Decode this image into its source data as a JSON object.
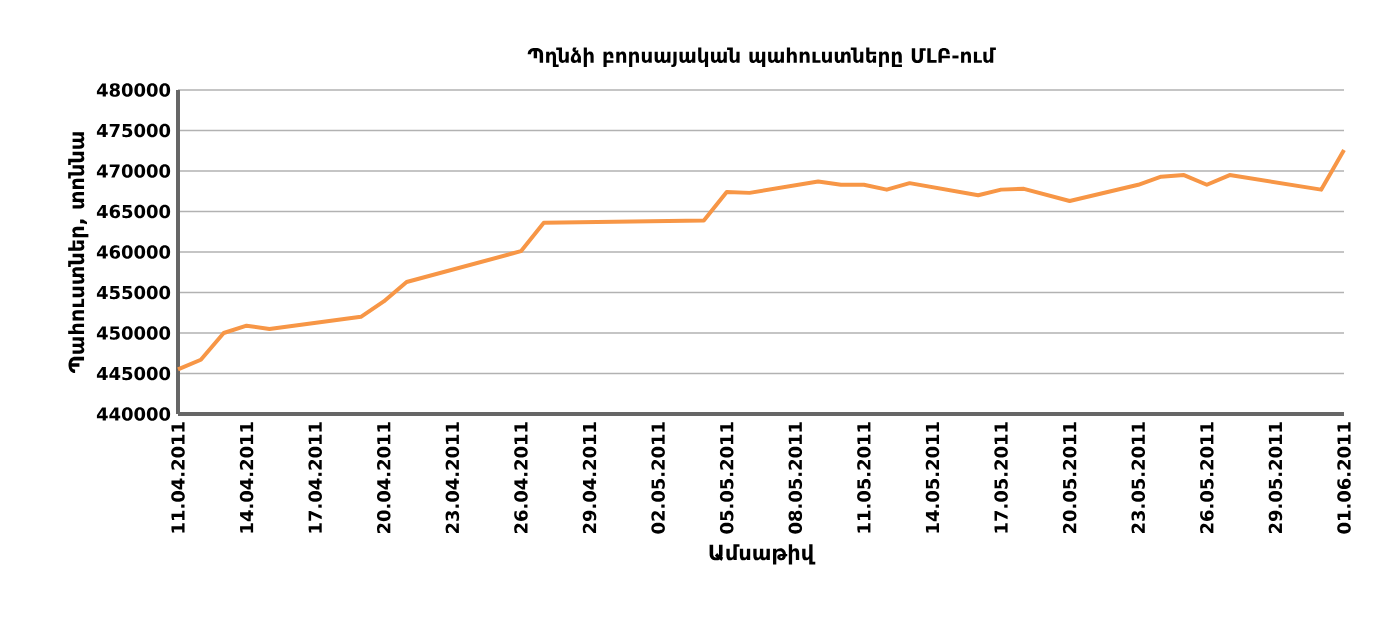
{
  "chart_data": {
    "type": "line",
    "title": "Պղնձի բորսայական պահուստները ՄԼԲ-ում",
    "xlabel": "Ամսաթիվ",
    "ylabel": "Պահուստներ, տոննա",
    "x": [
      "2011-04-11",
      "2011-04-12",
      "2011-04-13",
      "2011-04-14",
      "2011-04-15",
      "2011-04-19",
      "2011-04-20",
      "2011-04-21",
      "2011-04-26",
      "2011-04-27",
      "2011-05-04",
      "2011-05-05",
      "2011-05-06",
      "2011-05-09",
      "2011-05-10",
      "2011-05-11",
      "2011-05-12",
      "2011-05-13",
      "2011-05-16",
      "2011-05-17",
      "2011-05-18",
      "2011-05-20",
      "2011-05-23",
      "2011-05-24",
      "2011-05-25",
      "2011-05-26",
      "2011-05-27",
      "2011-05-31",
      "2011-06-01"
    ],
    "series": [
      {
        "color": "#f79646",
        "values": [
          445500,
          446700,
          450000,
          450900,
          450500,
          452000,
          453900,
          456300,
          460100,
          463600,
          463900,
          467400,
          467300,
          468700,
          468300,
          468300,
          467700,
          468500,
          467000,
          467700,
          467800,
          466300,
          468300,
          469300,
          469500,
          468300,
          469500,
          467700,
          472600
        ]
      }
    ],
    "xlim": [
      "2011-04-11",
      "2011-06-01"
    ],
    "xticks": [
      {
        "value": "2011-04-11",
        "label": "11.04.2011"
      },
      {
        "value": "2011-04-14",
        "label": "14.04.2011"
      },
      {
        "value": "2011-04-17",
        "label": "17.04.2011"
      },
      {
        "value": "2011-04-20",
        "label": "20.04.2011"
      },
      {
        "value": "2011-04-23",
        "label": "23.04.2011"
      },
      {
        "value": "2011-04-26",
        "label": "26.04.2011"
      },
      {
        "value": "2011-04-29",
        "label": "29.04.2011"
      },
      {
        "value": "2011-05-02",
        "label": "02.05.2011"
      },
      {
        "value": "2011-05-05",
        "label": "05.05.2011"
      },
      {
        "value": "2011-05-08",
        "label": "08.05.2011"
      },
      {
        "value": "2011-05-11",
        "label": "11.05.2011"
      },
      {
        "value": "2011-05-14",
        "label": "14.05.2011"
      },
      {
        "value": "2011-05-17",
        "label": "17.05.2011"
      },
      {
        "value": "2011-05-20",
        "label": "20.05.2011"
      },
      {
        "value": "2011-05-23",
        "label": "23.05.2011"
      },
      {
        "value": "2011-05-26",
        "label": "26.05.2011"
      },
      {
        "value": "2011-05-29",
        "label": "29.05.2011"
      },
      {
        "value": "2011-06-01",
        "label": "01.06.2011"
      }
    ],
    "ylim": [
      440000,
      480000
    ],
    "yticks": [
      440000,
      445000,
      450000,
      455000,
      460000,
      465000,
      470000,
      475000,
      480000
    ],
    "grid": "y",
    "marker": "none",
    "line_style": "solid"
  }
}
